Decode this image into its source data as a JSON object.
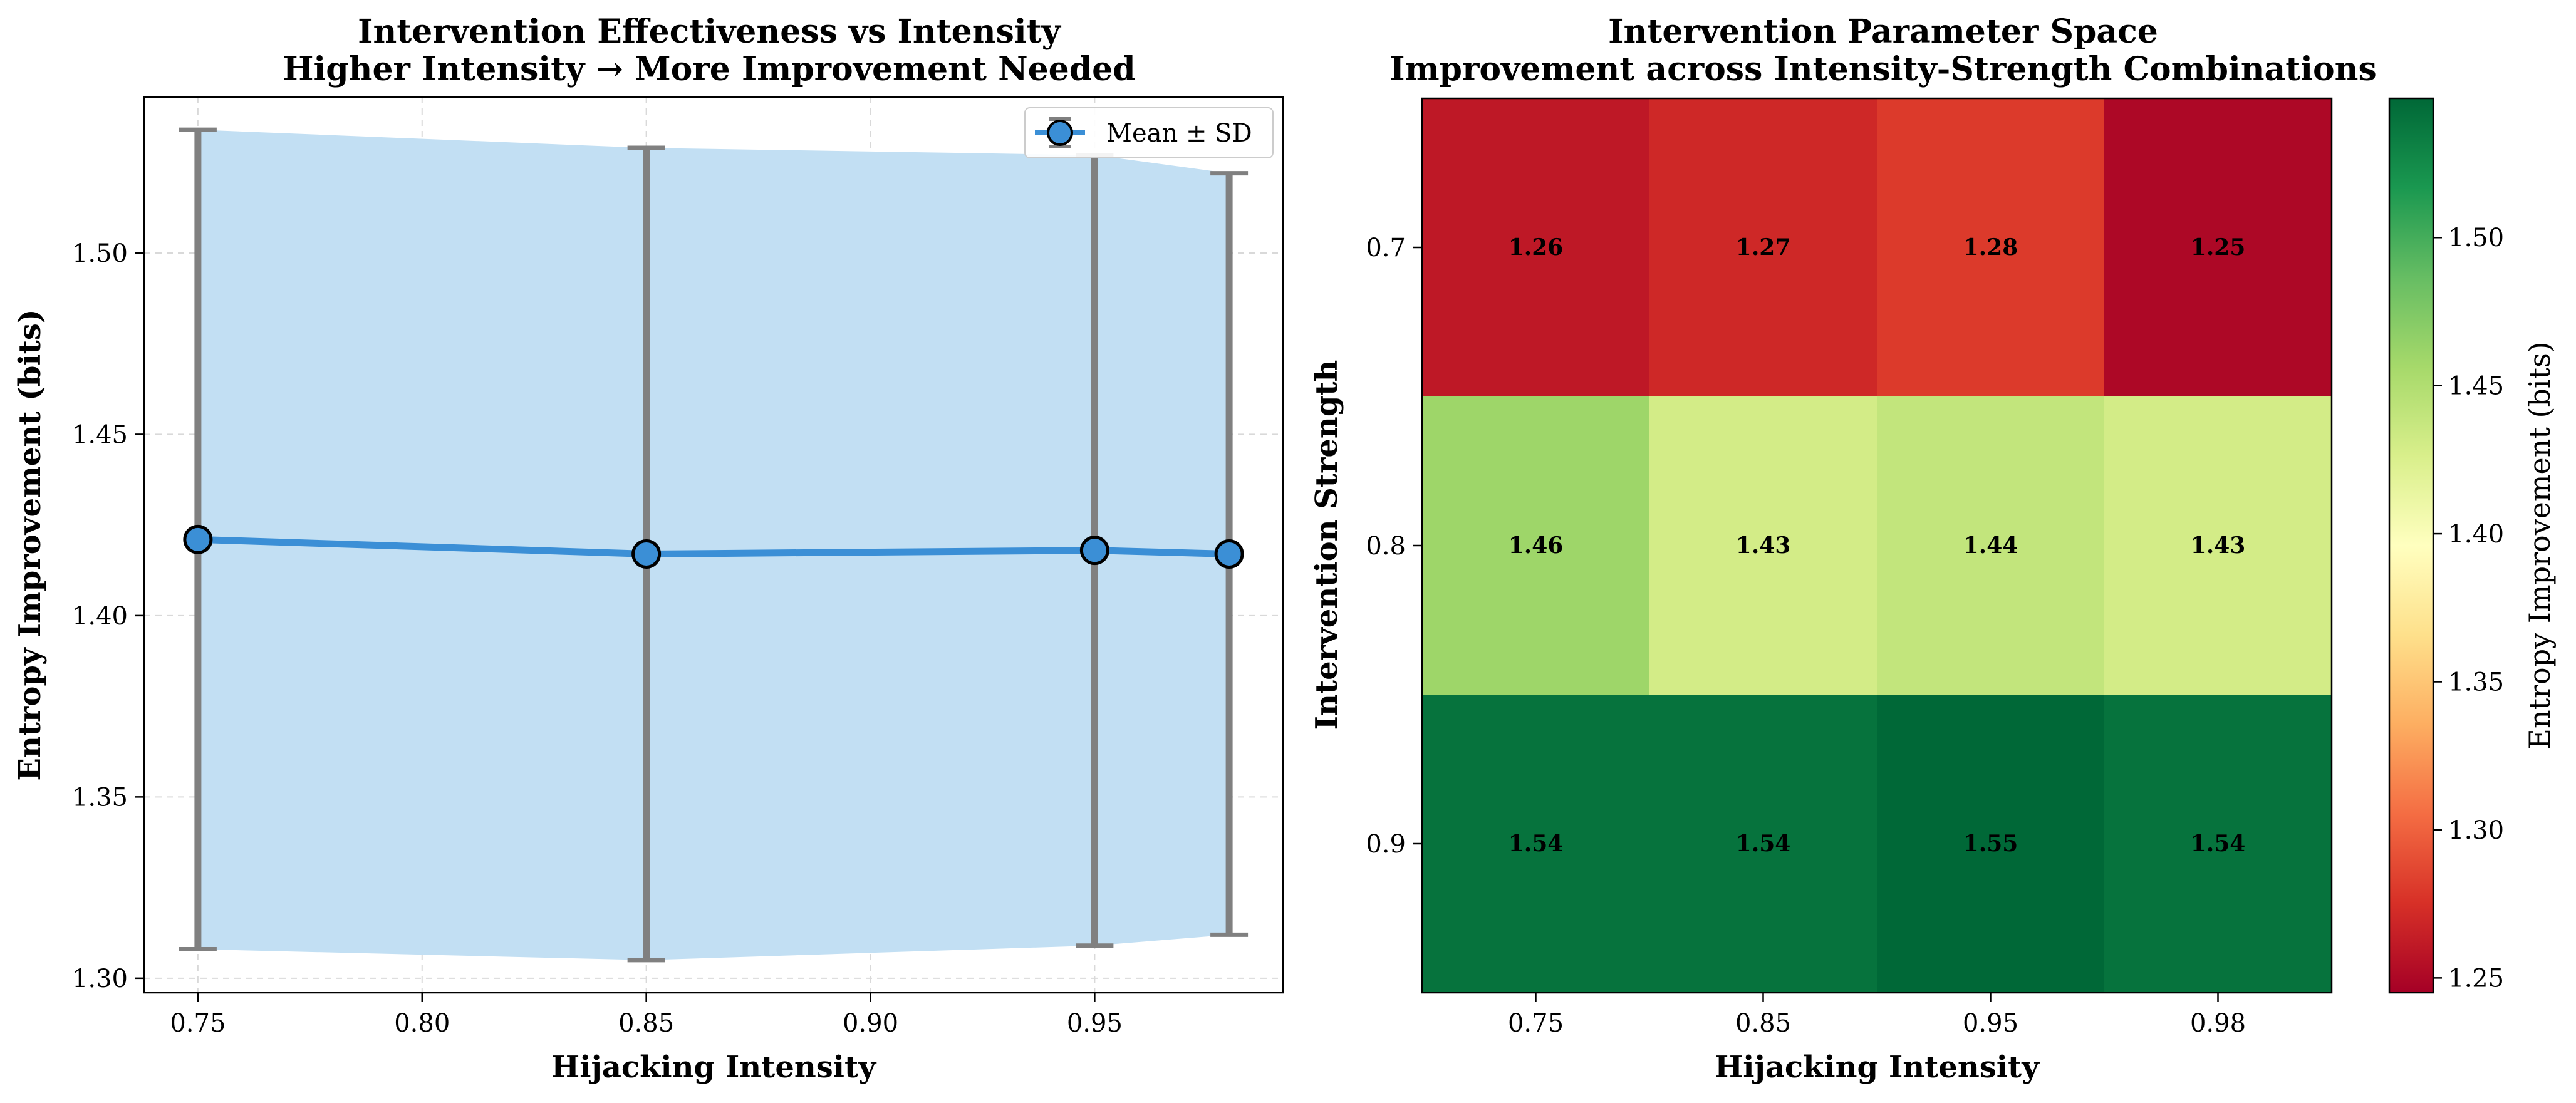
{
  "chart_data": [
    {
      "type": "line",
      "title": "Intervention Effectiveness vs Intensity",
      "subtitle": "Higher Intensity → More Improvement Needed",
      "xlabel": "Hijacking Intensity",
      "ylabel": "Entropy Improvement (bits)",
      "x": [
        0.75,
        0.85,
        0.95,
        0.98
      ],
      "series": [
        {
          "name": "Mean ± SD",
          "values": [
            1.421,
            1.417,
            1.418,
            1.417
          ],
          "sd": [
            0.113,
            0.112,
            0.109,
            0.105
          ],
          "color": "#3b8fd6",
          "band_color": "#c2dff3",
          "errorbar_color": "#808080"
        }
      ],
      "xlim": [
        0.738,
        0.992
      ],
      "ylim": [
        1.296,
        1.543
      ],
      "xticks": [
        "0.75",
        "0.80",
        "0.85",
        "0.90",
        "0.95"
      ],
      "yticks": [
        "1.30",
        "1.35",
        "1.40",
        "1.45",
        "1.50"
      ],
      "grid": true,
      "legend": "top-right"
    },
    {
      "type": "heatmap",
      "title": "Intervention Parameter Space",
      "subtitle": "Improvement across Intensity-Strength Combinations",
      "xlabel": "Hijacking Intensity",
      "ylabel": "Intervention Strength",
      "columns": [
        "0.75",
        "0.85",
        "0.95",
        "0.98"
      ],
      "rows": [
        "0.7",
        "0.8",
        "0.9"
      ],
      "values": [
        [
          1.26,
          1.27,
          1.28,
          1.25
        ],
        [
          1.46,
          1.43,
          1.44,
          1.43
        ],
        [
          1.54,
          1.54,
          1.55,
          1.54
        ]
      ],
      "colorbar": {
        "label": "Entropy Improvement (bits)",
        "range": [
          1.245,
          1.547
        ],
        "ticks": [
          "1.25",
          "1.30",
          "1.35",
          "1.40",
          "1.45",
          "1.50"
        ],
        "colormap": "RdYlGn"
      }
    }
  ]
}
